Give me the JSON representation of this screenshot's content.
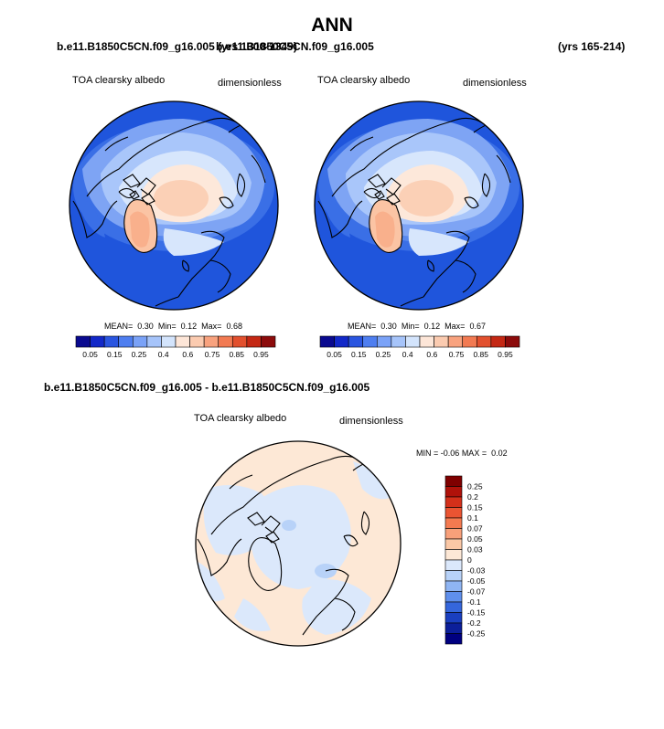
{
  "page": {
    "title": "ANN"
  },
  "chart_data": [
    {
      "type": "heatmap",
      "projection": "north-polar-stereographic",
      "case_title": "b.e11.B1850C5CN.f09_g16.005 (yrs 1300-1349)",
      "left_label": "TOA clearsky albedo",
      "right_label": "dimensionless",
      "stats": {
        "mean_label": "MEAN=",
        "mean": "0.30",
        "min_label": "Min=",
        "min": "0.12",
        "max_label": "Max=",
        "max": "0.68"
      },
      "colorbar": {
        "orientation": "horizontal",
        "ticks": [
          "0.05",
          "0.15",
          "0.25",
          "0.4",
          "0.6",
          "0.75",
          "0.85",
          "0.95"
        ],
        "colors": [
          "#0a0a8f",
          "#1228c8",
          "#2a55e0",
          "#4e7ef0",
          "#7aa2f7",
          "#a6c4fa",
          "#d3e4fc",
          "#fde6d8",
          "#fbcbb0",
          "#f8a27e",
          "#f27a52",
          "#e2502e",
          "#c42814",
          "#8c0b0b"
        ]
      }
    },
    {
      "type": "heatmap",
      "projection": "north-polar-stereographic",
      "case_title": "b.e11.B1850C5CN.f09_g16.005",
      "years": "(yrs 165-214)",
      "left_label": "TOA clearsky albedo",
      "right_label": "dimensionless",
      "stats": {
        "mean_label": "MEAN=",
        "mean": "0.30",
        "min_label": "Min=",
        "min": "0.12",
        "max_label": "Max=",
        "max": "0.67"
      },
      "colorbar": {
        "orientation": "horizontal",
        "ticks": [
          "0.05",
          "0.15",
          "0.25",
          "0.4",
          "0.6",
          "0.75",
          "0.85",
          "0.95"
        ],
        "colors": [
          "#0a0a8f",
          "#1228c8",
          "#2a55e0",
          "#4e7ef0",
          "#7aa2f7",
          "#a6c4fa",
          "#d3e4fc",
          "#fde6d8",
          "#fbcbb0",
          "#f8a27e",
          "#f27a52",
          "#e2502e",
          "#c42814",
          "#8c0b0b"
        ]
      }
    },
    {
      "type": "heatmap",
      "projection": "north-polar-stereographic",
      "case_title": "b.e11.B1850C5CN.f09_g16.005 - b.e11.B1850C5CN.f09_g16.005",
      "left_label": "TOA clearsky albedo",
      "right_label": "dimensionless",
      "stats": {
        "min_label": "MIN =",
        "min": "-0.06",
        "max_label": "MAX =",
        "max": "0.02"
      },
      "colorbar": {
        "orientation": "vertical",
        "ticks": [
          "0.25",
          "0.2",
          "0.15",
          "0.1",
          "0.07",
          "0.05",
          "0.03",
          "0",
          "-0.03",
          "-0.05",
          "-0.07",
          "-0.1",
          "-0.15",
          "-0.2",
          "-0.25"
        ],
        "colors": [
          "#7f0000",
          "#b0120a",
          "#d4301a",
          "#ea5432",
          "#f47a50",
          "#f8a07a",
          "#fbc8a6",
          "#fde8d6",
          "#dbe8fb",
          "#b8d2f8",
          "#8fb5f3",
          "#5f8fec",
          "#3566dc",
          "#1a3fc0",
          "#0c1f9a",
          "#000080"
        ]
      }
    }
  ]
}
